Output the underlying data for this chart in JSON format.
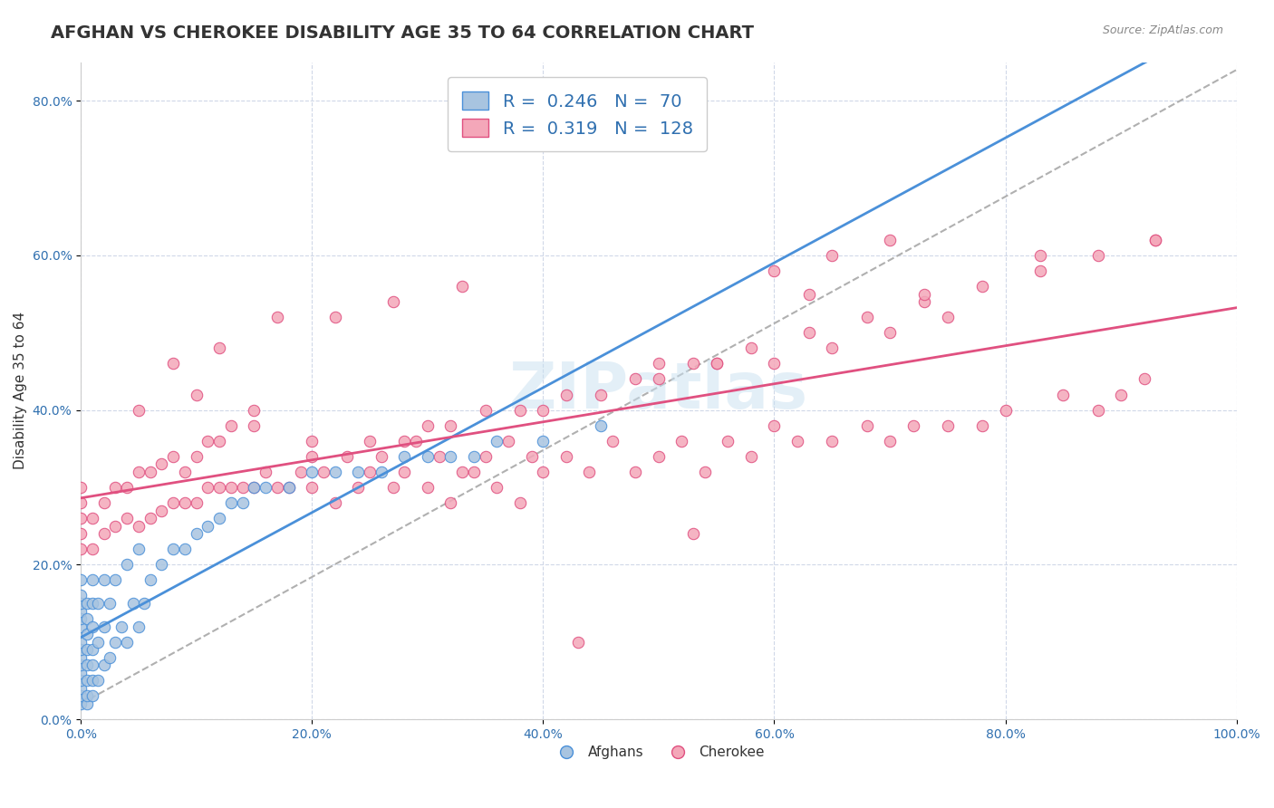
{
  "title": "AFGHAN VS CHEROKEE DISABILITY AGE 35 TO 64 CORRELATION CHART",
  "source": "Source: ZipAtlas.com",
  "xlabel": "",
  "ylabel": "Disability Age 35 to 64",
  "xlim": [
    0.0,
    1.0
  ],
  "ylim": [
    0.0,
    0.85
  ],
  "xticks": [
    0.0,
    0.2,
    0.4,
    0.6,
    0.8,
    1.0
  ],
  "xticklabels": [
    "0.0%",
    "20.0%",
    "40.0%",
    "60.0%",
    "80.0%",
    "100.0%"
  ],
  "yticks": [
    0.0,
    0.2,
    0.4,
    0.6,
    0.8
  ],
  "yticklabels": [
    "0.0%",
    "20.0%",
    "40.0%",
    "60.0%",
    "80.0%"
  ],
  "afghan_color": "#a8c4e0",
  "cherokee_color": "#f4a7b9",
  "afghan_line_color": "#4a90d9",
  "cherokee_line_color": "#e05080",
  "trend_line_color": "#b0b0b0",
  "legend_R_afghan": "0.246",
  "legend_N_afghan": "70",
  "legend_R_cherokee": "0.319",
  "legend_N_cherokee": "128",
  "watermark": "ZIPatlas",
  "background_color": "#ffffff",
  "grid_color": "#d0d8e8",
  "title_fontsize": 14,
  "axis_label_fontsize": 11,
  "tick_fontsize": 10,
  "afghan_scatter": {
    "x": [
      0.0,
      0.0,
      0.0,
      0.0,
      0.0,
      0.0,
      0.0,
      0.0,
      0.0,
      0.0,
      0.0,
      0.0,
      0.0,
      0.0,
      0.0,
      0.005,
      0.005,
      0.005,
      0.005,
      0.005,
      0.005,
      0.005,
      0.005,
      0.01,
      0.01,
      0.01,
      0.01,
      0.01,
      0.01,
      0.01,
      0.015,
      0.015,
      0.015,
      0.02,
      0.02,
      0.02,
      0.025,
      0.025,
      0.03,
      0.03,
      0.035,
      0.04,
      0.04,
      0.045,
      0.05,
      0.05,
      0.055,
      0.06,
      0.07,
      0.08,
      0.09,
      0.1,
      0.11,
      0.12,
      0.13,
      0.14,
      0.15,
      0.16,
      0.18,
      0.2,
      0.22,
      0.24,
      0.26,
      0.28,
      0.3,
      0.32,
      0.34,
      0.36,
      0.4,
      0.45
    ],
    "y": [
      0.02,
      0.03,
      0.04,
      0.05,
      0.06,
      0.07,
      0.08,
      0.09,
      0.1,
      0.12,
      0.13,
      0.14,
      0.15,
      0.16,
      0.18,
      0.02,
      0.03,
      0.05,
      0.07,
      0.09,
      0.11,
      0.13,
      0.15,
      0.03,
      0.05,
      0.07,
      0.09,
      0.12,
      0.15,
      0.18,
      0.05,
      0.1,
      0.15,
      0.07,
      0.12,
      0.18,
      0.08,
      0.15,
      0.1,
      0.18,
      0.12,
      0.1,
      0.2,
      0.15,
      0.12,
      0.22,
      0.15,
      0.18,
      0.2,
      0.22,
      0.22,
      0.24,
      0.25,
      0.26,
      0.28,
      0.28,
      0.3,
      0.3,
      0.3,
      0.32,
      0.32,
      0.32,
      0.32,
      0.34,
      0.34,
      0.34,
      0.34,
      0.36,
      0.36,
      0.38
    ]
  },
  "cherokee_scatter": {
    "x": [
      0.0,
      0.0,
      0.0,
      0.0,
      0.0,
      0.01,
      0.01,
      0.02,
      0.02,
      0.03,
      0.03,
      0.04,
      0.04,
      0.05,
      0.05,
      0.06,
      0.06,
      0.07,
      0.07,
      0.08,
      0.08,
      0.09,
      0.09,
      0.1,
      0.1,
      0.11,
      0.11,
      0.12,
      0.12,
      0.13,
      0.13,
      0.14,
      0.15,
      0.15,
      0.16,
      0.17,
      0.18,
      0.19,
      0.2,
      0.2,
      0.21,
      0.22,
      0.23,
      0.24,
      0.25,
      0.26,
      0.27,
      0.28,
      0.29,
      0.3,
      0.31,
      0.32,
      0.33,
      0.34,
      0.35,
      0.36,
      0.37,
      0.38,
      0.39,
      0.4,
      0.42,
      0.44,
      0.46,
      0.48,
      0.5,
      0.52,
      0.54,
      0.56,
      0.58,
      0.6,
      0.62,
      0.65,
      0.68,
      0.7,
      0.72,
      0.75,
      0.78,
      0.8,
      0.85,
      0.88,
      0.9,
      0.92,
      0.5,
      0.55,
      0.6,
      0.65,
      0.7,
      0.75,
      0.3,
      0.35,
      0.4,
      0.25,
      0.2,
      0.45,
      0.5,
      0.55,
      0.28,
      0.32,
      0.38,
      0.42,
      0.48,
      0.53,
      0.58,
      0.63,
      0.68,
      0.73,
      0.78,
      0.83,
      0.88,
      0.93,
      0.6,
      0.65,
      0.7,
      0.15,
      0.1,
      0.05,
      0.08,
      0.12,
      0.17,
      0.22,
      0.27,
      0.33,
      0.43,
      0.53,
      0.63,
      0.73,
      0.83,
      0.93
    ],
    "y": [
      0.22,
      0.24,
      0.26,
      0.28,
      0.3,
      0.22,
      0.26,
      0.24,
      0.28,
      0.25,
      0.3,
      0.26,
      0.3,
      0.25,
      0.32,
      0.26,
      0.32,
      0.27,
      0.33,
      0.28,
      0.34,
      0.28,
      0.32,
      0.28,
      0.34,
      0.3,
      0.36,
      0.3,
      0.36,
      0.3,
      0.38,
      0.3,
      0.3,
      0.38,
      0.32,
      0.3,
      0.3,
      0.32,
      0.3,
      0.36,
      0.32,
      0.28,
      0.34,
      0.3,
      0.32,
      0.34,
      0.3,
      0.32,
      0.36,
      0.3,
      0.34,
      0.28,
      0.32,
      0.32,
      0.34,
      0.3,
      0.36,
      0.28,
      0.34,
      0.32,
      0.34,
      0.32,
      0.36,
      0.32,
      0.34,
      0.36,
      0.32,
      0.36,
      0.34,
      0.38,
      0.36,
      0.36,
      0.38,
      0.36,
      0.38,
      0.38,
      0.38,
      0.4,
      0.42,
      0.4,
      0.42,
      0.44,
      0.46,
      0.46,
      0.46,
      0.48,
      0.5,
      0.52,
      0.38,
      0.4,
      0.4,
      0.36,
      0.34,
      0.42,
      0.44,
      0.46,
      0.36,
      0.38,
      0.4,
      0.42,
      0.44,
      0.46,
      0.48,
      0.5,
      0.52,
      0.54,
      0.56,
      0.58,
      0.6,
      0.62,
      0.58,
      0.6,
      0.62,
      0.4,
      0.42,
      0.4,
      0.46,
      0.48,
      0.52,
      0.52,
      0.54,
      0.56,
      0.1,
      0.24,
      0.55,
      0.55,
      0.6,
      0.62
    ]
  }
}
